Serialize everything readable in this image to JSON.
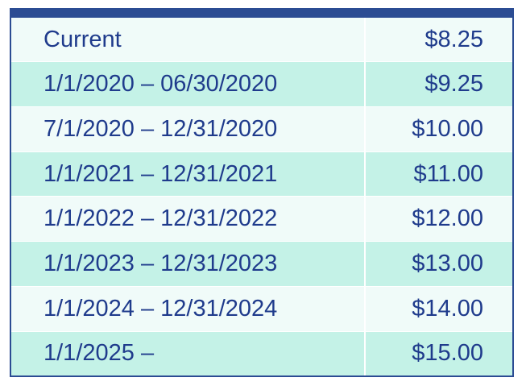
{
  "table": {
    "rows": [
      {
        "period": "Current",
        "rate": "$8.25"
      },
      {
        "period": "1/1/2020 – 06/30/2020",
        "rate": "$9.25"
      },
      {
        "period": "7/1/2020 – 12/31/2020",
        "rate": "$10.00"
      },
      {
        "period": "1/1/2021 – 12/31/2021",
        "rate": "$11.00"
      },
      {
        "period": "1/1/2022 – 12/31/2022",
        "rate": "$12.00"
      },
      {
        "period": "1/1/2023 – 12/31/2023",
        "rate": "$13.00"
      },
      {
        "period": "1/1/2024 – 12/31/2024",
        "rate": "$14.00"
      },
      {
        "period": "1/1/2025 –",
        "rate": "$15.00"
      }
    ]
  },
  "colors": {
    "border": "#2b4c93",
    "text": "#1f3b8c",
    "row_light": "#f0fbf9",
    "row_dark": "#c4f2e7"
  }
}
